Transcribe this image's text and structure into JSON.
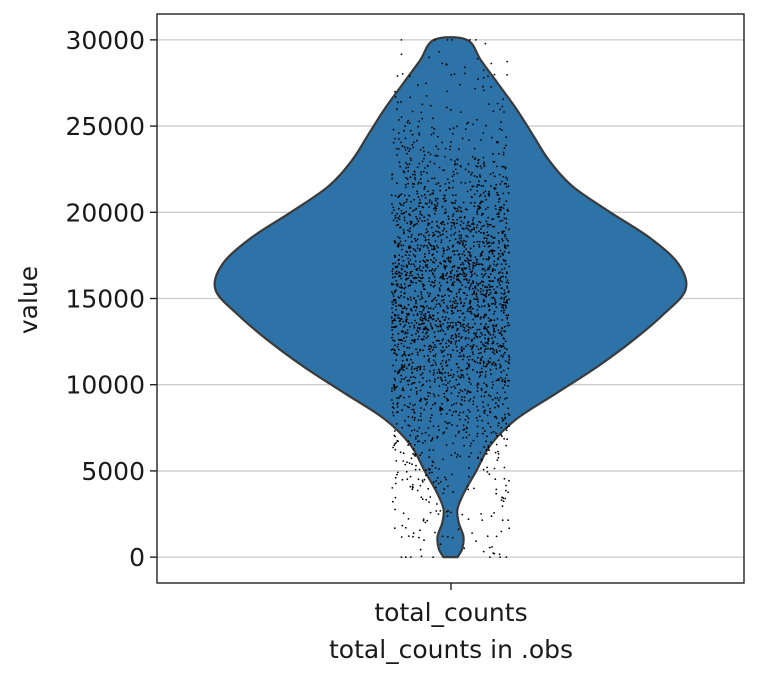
{
  "chart_data": {
    "type": "violin",
    "xlabel": "total_counts in .obs",
    "ylabel": "value",
    "categories": [
      "total_counts"
    ],
    "ylim": [
      -1500,
      31500
    ],
    "yticks": [
      0,
      5000,
      10000,
      15000,
      20000,
      25000,
      30000
    ],
    "ytick_labels": [
      "0",
      "5000",
      "10000",
      "15000",
      "20000",
      "25000",
      "30000"
    ],
    "grid": "horizontal",
    "legend": "none",
    "colors": {
      "violin_fill": "#2e73a8",
      "violin_edge": "#3a3a3a",
      "points": "#000000",
      "grid": "#cccccc"
    },
    "violin": {
      "min": 0,
      "max": 30000,
      "density_profile": [
        {
          "value": 0,
          "width": 0.03
        },
        {
          "value": 500,
          "width": 0.05
        },
        {
          "value": 1200,
          "width": 0.055
        },
        {
          "value": 2000,
          "width": 0.035
        },
        {
          "value": 2800,
          "width": 0.03
        },
        {
          "value": 3800,
          "width": 0.06
        },
        {
          "value": 5000,
          "width": 0.11
        },
        {
          "value": 6500,
          "width": 0.17
        },
        {
          "value": 8000,
          "width": 0.28
        },
        {
          "value": 9500,
          "width": 0.45
        },
        {
          "value": 11000,
          "width": 0.62
        },
        {
          "value": 12500,
          "width": 0.77
        },
        {
          "value": 14000,
          "width": 0.9
        },
        {
          "value": 15500,
          "width": 1.0
        },
        {
          "value": 17000,
          "width": 0.97
        },
        {
          "value": 18500,
          "width": 0.85
        },
        {
          "value": 20000,
          "width": 0.68
        },
        {
          "value": 21500,
          "width": 0.52
        },
        {
          "value": 23000,
          "width": 0.42
        },
        {
          "value": 24500,
          "width": 0.35
        },
        {
          "value": 26000,
          "width": 0.28
        },
        {
          "value": 27500,
          "width": 0.2
        },
        {
          "value": 28800,
          "width": 0.13
        },
        {
          "value": 30000,
          "width": 0.07
        }
      ]
    },
    "jitter_points": {
      "count": 2600,
      "center": 15000,
      "spread": 5200,
      "min": 0,
      "max": 30000
    }
  }
}
